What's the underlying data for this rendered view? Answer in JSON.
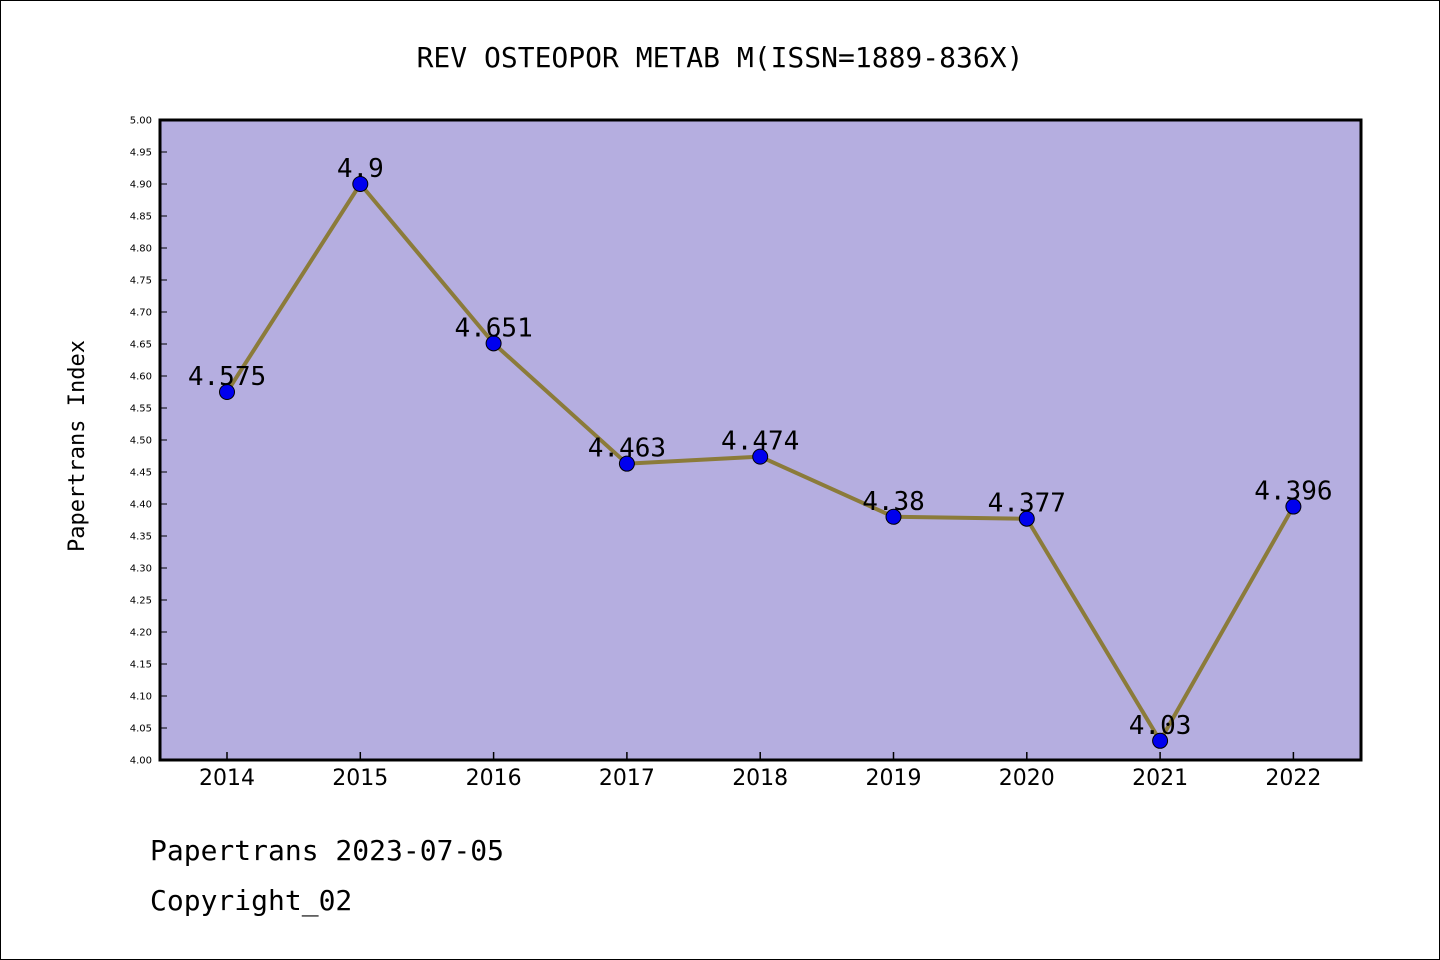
{
  "chart_data": {
    "type": "line",
    "title": "REV OSTEOPOR METAB M(ISSN=1889-836X)",
    "xlabel": "",
    "ylabel": "Papertrans Index",
    "categories": [
      "2014",
      "2015",
      "2016",
      "2017",
      "2018",
      "2019",
      "2020",
      "2021",
      "2022"
    ],
    "series": [
      {
        "name": "",
        "values": [
          4.575,
          4.9,
          4.651,
          4.463,
          4.474,
          4.38,
          4.377,
          4.03,
          4.396
        ],
        "labels": [
          "4.575",
          "4.9",
          "4.651",
          "4.463",
          "4.474",
          "4.38",
          "4.377",
          "4.03",
          "4.396"
        ]
      }
    ],
    "ylim": [
      4.0,
      5.0
    ],
    "yticks": [
      "4.00",
      "4.05",
      "4.10",
      "4.15",
      "4.20",
      "4.25",
      "4.30",
      "4.35",
      "4.40",
      "4.45",
      "4.50",
      "4.55",
      "4.60",
      "4.65",
      "4.70",
      "4.75",
      "4.80",
      "4.85",
      "4.90",
      "4.95",
      "5.00"
    ],
    "grid": false,
    "legend": "none",
    "colors": {
      "plot_background": "#b5aee0",
      "line": "#8b7b3a",
      "marker": "#0000ee",
      "axis": "#000000"
    }
  },
  "footer": {
    "source": "Papertrans 2023-07-05",
    "copyright": "Copyright_02"
  }
}
